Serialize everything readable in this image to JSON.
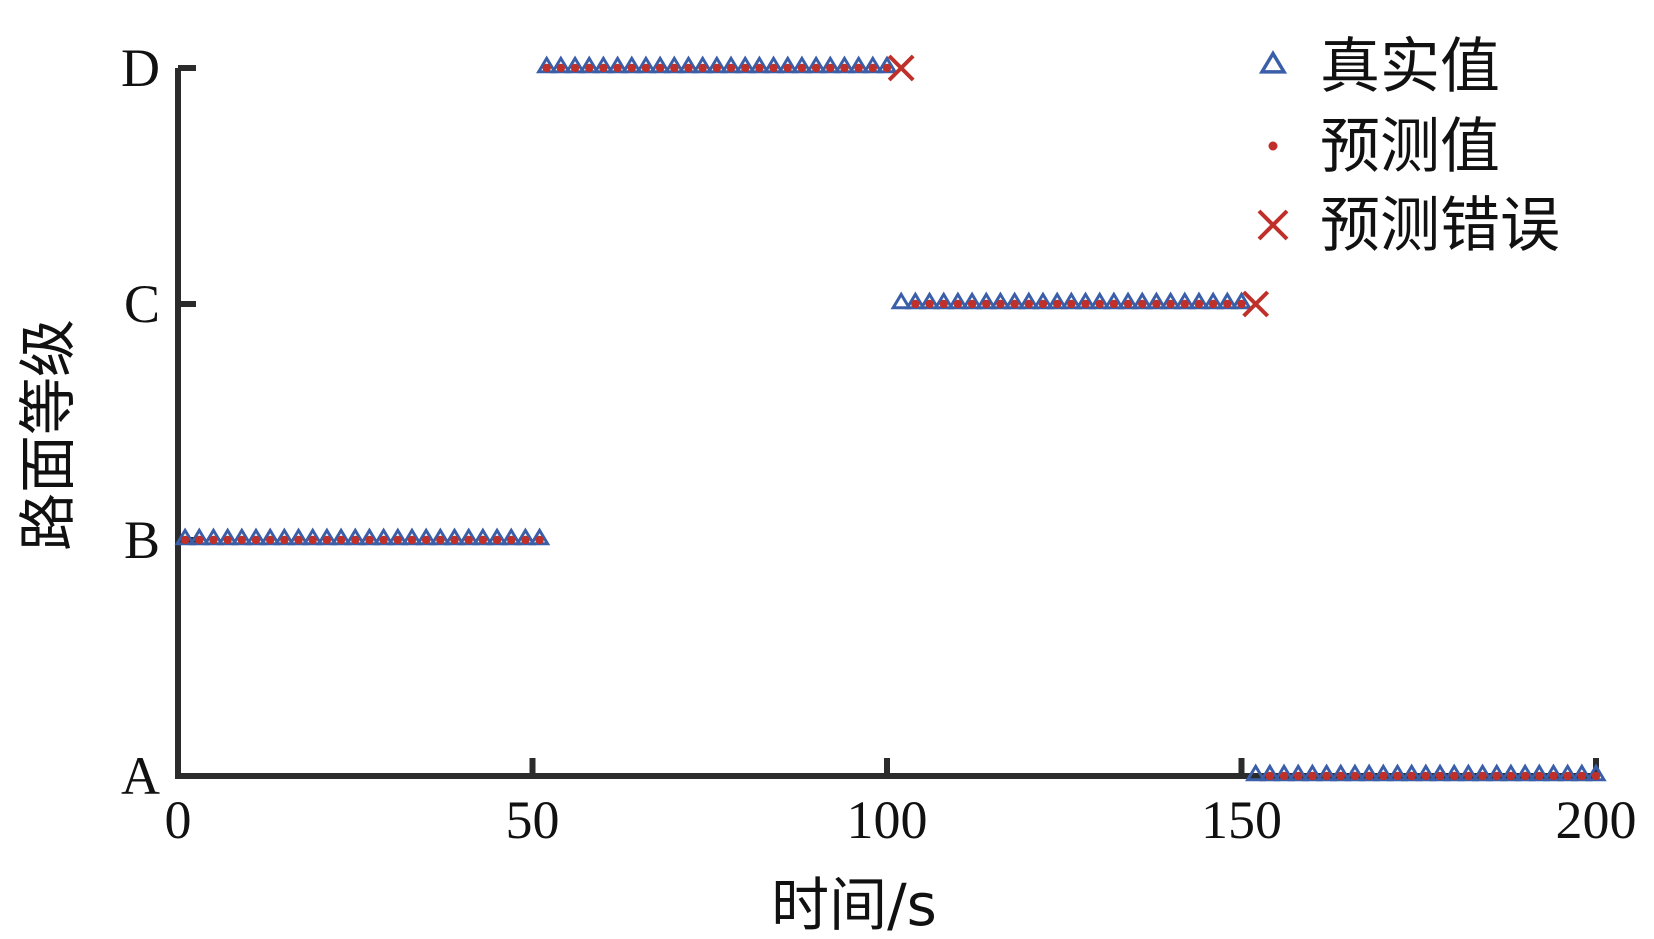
{
  "chart_data": {
    "type": "scatter",
    "title": "",
    "xlabel": "时间/s",
    "ylabel": "路面等级",
    "xlim": [
      0,
      200
    ],
    "xticks": [
      0,
      50,
      100,
      150,
      200
    ],
    "yticks": [
      "A",
      "B",
      "C",
      "D"
    ],
    "legend_position": "top-right",
    "grid": false,
    "series": [
      {
        "name": "真实值",
        "marker": "triangle",
        "color": "#3a5ea8",
        "segments": [
          {
            "level": "B",
            "x_start": 1,
            "x_end": 51,
            "step": 2
          },
          {
            "level": "D",
            "x_start": 52,
            "x_end": 100,
            "step": 2
          },
          {
            "level": "C",
            "x_start": 102,
            "x_end": 150,
            "step": 2
          },
          {
            "level": "A",
            "x_start": 152,
            "x_end": 200,
            "step": 2
          }
        ]
      },
      {
        "name": "预测值",
        "marker": "dot",
        "color": "#c0302a",
        "segments": [
          {
            "level": "B",
            "x_start": 1,
            "x_end": 51,
            "step": 2
          },
          {
            "level": "D",
            "x_start": 52,
            "x_end": 100,
            "step": 2
          },
          {
            "level": "C",
            "x_start": 104,
            "x_end": 150,
            "step": 2
          },
          {
            "level": "A",
            "x_start": 154,
            "x_end": 200,
            "step": 2
          }
        ]
      },
      {
        "name": "预测错误",
        "marker": "x",
        "color": "#c0302a",
        "points": [
          {
            "x": 102,
            "level": "D"
          },
          {
            "x": 152,
            "level": "C"
          }
        ]
      }
    ]
  }
}
